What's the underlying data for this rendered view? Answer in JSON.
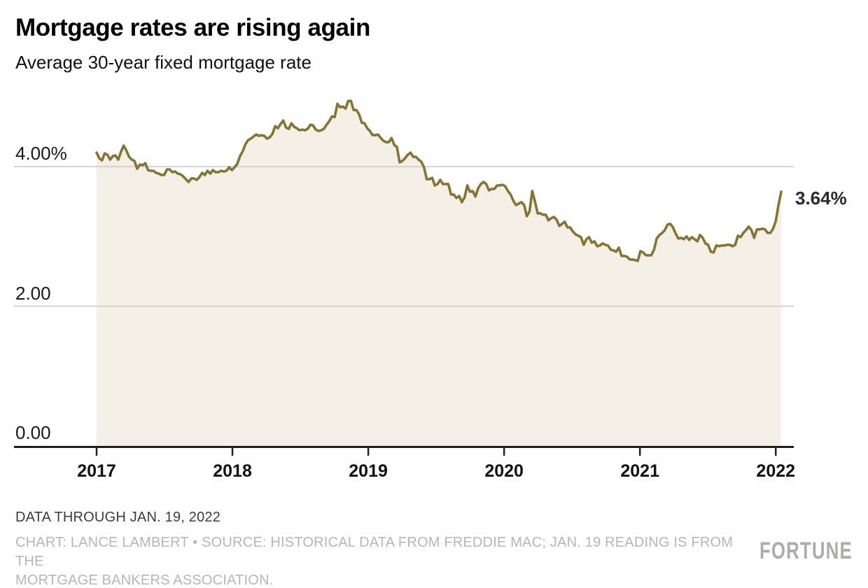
{
  "header": {
    "title": "Mortgage rates are rising again",
    "subtitle": "Average 30-year fixed mortgage rate"
  },
  "chart_data": {
    "type": "area",
    "title": "Mortgage rates are rising again",
    "subtitle": "Average 30-year fixed mortgage rate",
    "series_name": "Average 30-year fixed mortgage rate (%)",
    "x_start": 2017.0,
    "x_end": 2022.04,
    "ylim": [
      0,
      5.2
    ],
    "grid": "horizontal",
    "legend": "none",
    "end_label": "3.64%",
    "end_value": 3.64,
    "yticks": [
      {
        "value": 4,
        "label": "4.00%"
      },
      {
        "value": 2,
        "label": "2.00"
      },
      {
        "value": 0,
        "label": "0.00"
      }
    ],
    "xticks": [
      {
        "value": 2017,
        "label": "2017"
      },
      {
        "value": 2018,
        "label": "2018"
      },
      {
        "value": 2019,
        "label": "2019"
      },
      {
        "value": 2020,
        "label": "2020"
      },
      {
        "value": 2021,
        "label": "2021"
      },
      {
        "value": 2022,
        "label": "2022"
      }
    ],
    "values": [
      4.2,
      4.12,
      4.09,
      4.19,
      4.17,
      4.1,
      4.15,
      4.16,
      4.1,
      4.21,
      4.3,
      4.23,
      4.14,
      4.1,
      4.08,
      3.97,
      4.03,
      4.02,
      4.05,
      3.95,
      3.94,
      3.94,
      3.91,
      3.9,
      3.88,
      3.88,
      3.96,
      3.96,
      3.92,
      3.93,
      3.9,
      3.89,
      3.86,
      3.82,
      3.78,
      3.83,
      3.83,
      3.81,
      3.85,
      3.91,
      3.88,
      3.94,
      3.9,
      3.95,
      3.92,
      3.92,
      3.94,
      3.93,
      3.94,
      3.99,
      3.95,
      3.99,
      4.04,
      4.15,
      4.22,
      4.32,
      4.38,
      4.4,
      4.43,
      4.46,
      4.44,
      4.45,
      4.44,
      4.4,
      4.42,
      4.47,
      4.58,
      4.55,
      4.61,
      4.66,
      4.56,
      4.54,
      4.62,
      4.57,
      4.55,
      4.52,
      4.53,
      4.52,
      4.54,
      4.6,
      4.59,
      4.53,
      4.51,
      4.52,
      4.54,
      4.6,
      4.65,
      4.72,
      4.71,
      4.9,
      4.85,
      4.86,
      4.83,
      4.94,
      4.94,
      4.81,
      4.81,
      4.75,
      4.63,
      4.62,
      4.55,
      4.51,
      4.45,
      4.45,
      4.46,
      4.41,
      4.37,
      4.35,
      4.35,
      4.41,
      4.31,
      4.28,
      4.06,
      4.08,
      4.12,
      4.17,
      4.2,
      4.14,
      4.14,
      4.1,
      4.07,
      3.99,
      3.82,
      3.82,
      3.84,
      3.73,
      3.75,
      3.81,
      3.75,
      3.75,
      3.75,
      3.6,
      3.6,
      3.55,
      3.58,
      3.49,
      3.56,
      3.73,
      3.64,
      3.65,
      3.57,
      3.69,
      3.75,
      3.78,
      3.75,
      3.66,
      3.68,
      3.68,
      3.73,
      3.73,
      3.74,
      3.72,
      3.65,
      3.6,
      3.51,
      3.45,
      3.47,
      3.49,
      3.45,
      3.29,
      3.36,
      3.65,
      3.5,
      3.33,
      3.33,
      3.31,
      3.31,
      3.23,
      3.26,
      3.28,
      3.24,
      3.15,
      3.18,
      3.21,
      3.13,
      3.13,
      3.07,
      3.03,
      3.01,
      2.99,
      2.88,
      2.96,
      2.99,
      2.91,
      2.93,
      2.86,
      2.87,
      2.9,
      2.88,
      2.87,
      2.81,
      2.8,
      2.78,
      2.84,
      2.72,
      2.72,
      2.71,
      2.67,
      2.67,
      2.66,
      2.65,
      2.79,
      2.77,
      2.73,
      2.73,
      2.73,
      2.81,
      2.97,
      3.02,
      3.05,
      3.09,
      3.17,
      3.18,
      3.13,
      3.04,
      2.97,
      2.98,
      2.96,
      3.0,
      2.95,
      2.99,
      2.96,
      2.93,
      3.02,
      2.98,
      2.9,
      2.88,
      2.78,
      2.77,
      2.87,
      2.86,
      2.87,
      2.87,
      2.88,
      2.88,
      2.86,
      2.88,
      3.01,
      2.99,
      3.05,
      3.09,
      3.14,
      3.09,
      2.98,
      3.1,
      3.1,
      3.11,
      3.1,
      3.05,
      3.05,
      3.11,
      3.22,
      3.45,
      3.64
    ],
    "colors": {
      "line": "#857530",
      "fill": "#f4f0e7",
      "grid": "#d6d4d0",
      "axis": "#1f1f1f",
      "text": "#1a1a1a"
    }
  },
  "footer": {
    "note": "DATA THROUGH JAN. 19, 2022",
    "credit_line1": "CHART: LANCE LAMBERT • SOURCE: HISTORICAL DATA FROM FREDDIE MAC; JAN. 19 READING IS FROM THE",
    "credit_line2": "MORTGAGE BANKERS ASSOCIATION.",
    "brand": "FORTUNE"
  }
}
